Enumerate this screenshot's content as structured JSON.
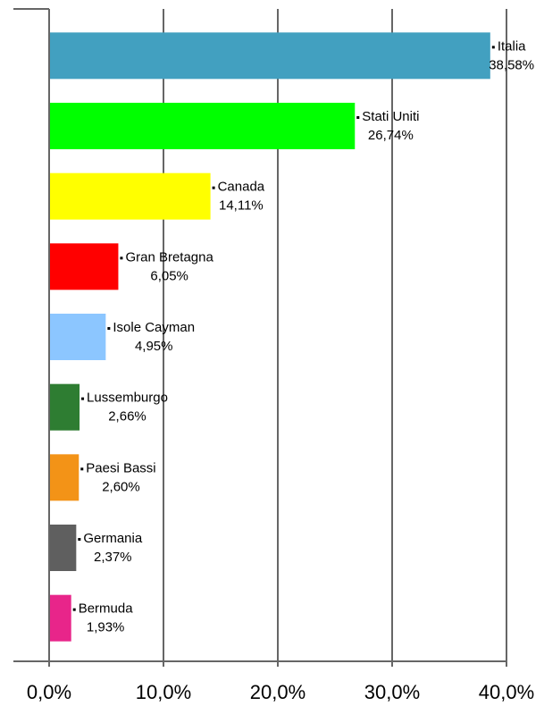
{
  "chart_data": {
    "type": "bar",
    "orientation": "horizontal",
    "categories": [
      "Italia",
      "Stati Uniti",
      "Canada",
      "Gran Bretagna",
      "Isole Cayman",
      "Lussemburgo",
      "Paesi Bassi",
      "Germania",
      "Bermuda"
    ],
    "values": [
      38.58,
      26.74,
      14.11,
      6.05,
      4.95,
      2.66,
      2.6,
      2.37,
      1.93
    ],
    "value_labels": [
      "38,58%",
      "26,74%",
      "14,11%",
      "6,05%",
      "4,95%",
      "2,66%",
      "2,60%",
      "2,37%",
      "1,93%"
    ],
    "colors": [
      "#42a0c0",
      "#00ff00",
      "#ffff00",
      "#ff0000",
      "#8cc6ff",
      "#2e7d32",
      "#f39317",
      "#5f5f5f",
      "#e8258a"
    ],
    "xlim": [
      0,
      40
    ],
    "xticks": [
      {
        "value": 0,
        "label": "0,0%"
      },
      {
        "value": 10,
        "label": "10,0%"
      },
      {
        "value": 20,
        "label": "20,0%"
      },
      {
        "value": 30,
        "label": "30,0%"
      },
      {
        "value": 40,
        "label": "40,0%"
      }
    ],
    "grid": true
  }
}
